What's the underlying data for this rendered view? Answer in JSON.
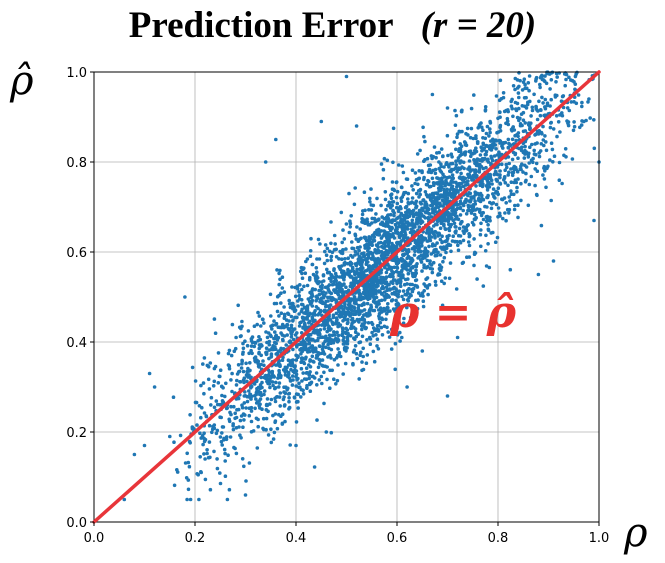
{
  "chart_data": {
    "type": "scatter",
    "title_text": "Prediction Error",
    "title_r": "(r = 20)",
    "xlabel": "ρ",
    "ylabel": "ρ̂",
    "xlim": [
      0.0,
      1.0
    ],
    "ylim": [
      0.0,
      1.0
    ],
    "x_ticks": [
      "0.0",
      "0.2",
      "0.4",
      "0.6",
      "0.8",
      "1.0"
    ],
    "y_ticks": [
      "0.0",
      "0.2",
      "0.4",
      "0.6",
      "0.8",
      "1.0"
    ],
    "grid": true,
    "reference_line": {
      "x": [
        0.0,
        1.0
      ],
      "y": [
        0.0,
        1.0
      ],
      "label": "ρ = ρ̂",
      "color": "#e8353a"
    },
    "series": [
      {
        "color": "#1f77b4",
        "description_points": "dense cloud of ~4000 points scattered around the identity line, spread ≈ ±0.1",
        "points": [
          [
            0.5,
            0.99
          ],
          [
            0.36,
            0.85
          ],
          [
            0.34,
            0.8
          ],
          [
            0.45,
            0.89
          ],
          [
            0.52,
            0.88
          ],
          [
            0.62,
            0.3
          ],
          [
            0.7,
            0.28
          ],
          [
            0.65,
            0.38
          ],
          [
            0.6,
            0.43
          ],
          [
            0.83,
            0.47
          ],
          [
            0.72,
            0.41
          ],
          [
            0.12,
            0.3
          ],
          [
            0.11,
            0.33
          ],
          [
            0.18,
            0.5
          ],
          [
            0.15,
            0.19
          ],
          [
            0.1,
            0.17
          ],
          [
            0.08,
            0.15
          ],
          [
            0.06,
            0.05
          ],
          [
            0.22,
            0.14
          ],
          [
            0.3,
            0.06
          ],
          [
            0.4,
            0.17
          ],
          [
            0.46,
            0.2
          ],
          [
            0.88,
            0.55
          ],
          [
            0.91,
            0.58
          ],
          [
            1.0,
            0.8
          ],
          [
            0.99,
            0.67
          ],
          [
            0.97,
            0.89
          ],
          [
            0.98,
            0.94
          ],
          [
            0.67,
            0.95
          ],
          [
            0.7,
            0.92
          ]
        ]
      }
    ]
  }
}
